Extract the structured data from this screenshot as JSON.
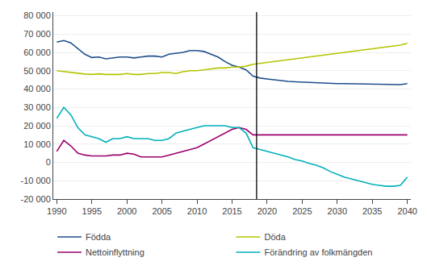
{
  "chart_data": {
    "type": "line",
    "title": "",
    "xlabel": "",
    "ylabel": "",
    "x": [
      1990,
      1991,
      1992,
      1993,
      1994,
      1995,
      1996,
      1997,
      1998,
      1999,
      2000,
      2001,
      2002,
      2003,
      2004,
      2005,
      2006,
      2007,
      2008,
      2009,
      2010,
      2011,
      2012,
      2013,
      2014,
      2015,
      2016,
      2017,
      2018,
      2019,
      2020,
      2021,
      2022,
      2023,
      2024,
      2025,
      2026,
      2027,
      2028,
      2029,
      2030,
      2031,
      2032,
      2033,
      2034,
      2035,
      2036,
      2037,
      2038,
      2039,
      2040
    ],
    "series": [
      {
        "name": "Födda",
        "color": "#1f4e8c",
        "values": [
          65600,
          66500,
          65200,
          62000,
          59000,
          57200,
          57500,
          56500,
          57000,
          57500,
          57500,
          57000,
          57500,
          58000,
          58000,
          57500,
          59000,
          59500,
          60000,
          61000,
          61000,
          60500,
          59000,
          57500,
          55000,
          53000,
          52000,
          50500,
          47000,
          46000,
          45500,
          45000,
          44500,
          44200,
          44000,
          43800,
          43600,
          43400,
          43200,
          43100,
          43000,
          43000,
          42900,
          42800,
          42700,
          42600,
          42600,
          42500,
          42400,
          42400,
          43000
        ]
      },
      {
        "name": "Döda",
        "color": "#b5c400",
        "values": [
          50000,
          49500,
          49000,
          48500,
          48200,
          48000,
          48300,
          48000,
          48000,
          48000,
          48500,
          48000,
          48000,
          48500,
          48500,
          49000,
          49000,
          48500,
          49500,
          50000,
          50000,
          50500,
          51000,
          51500,
          51500,
          52000,
          52000,
          52500,
          53500,
          54000,
          54500,
          55000,
          55500,
          56000,
          56500,
          57000,
          57500,
          58000,
          58500,
          59000,
          59500,
          60000,
          60500,
          61000,
          61500,
          62000,
          62500,
          63000,
          63500,
          64000,
          65000
        ]
      },
      {
        "name": "Nettoinflyttning",
        "color": "#9b006e",
        "values": [
          6000,
          12000,
          9000,
          5000,
          4000,
          3500,
          3500,
          3500,
          4000,
          4000,
          5000,
          4500,
          3000,
          3000,
          3000,
          3000,
          4000,
          5000,
          6000,
          7000,
          8000,
          10000,
          12000,
          14000,
          16000,
          18000,
          19000,
          18000,
          15000,
          15000,
          15000,
          15000,
          15000,
          15000,
          15000,
          15000,
          15000,
          15000,
          15000,
          15000,
          15000,
          15000,
          15000,
          15000,
          15000,
          15000,
          15000,
          15000,
          15000,
          15000,
          15000
        ]
      },
      {
        "name": "Förändring av folkmängden",
        "color": "#00b0b9",
        "values": [
          24000,
          30000,
          26000,
          19000,
          15000,
          14000,
          13000,
          11000,
          13000,
          13000,
          14000,
          13000,
          13000,
          13000,
          12000,
          12000,
          13000,
          16000,
          17000,
          18000,
          19000,
          20000,
          20000,
          20000,
          20000,
          19000,
          19000,
          16000,
          8000,
          7000,
          6000,
          5000,
          4000,
          3000,
          1500,
          800,
          -500,
          -1500,
          -3000,
          -5000,
          -6500,
          -8000,
          -9000,
          -10000,
          -11000,
          -12000,
          -12500,
          -13000,
          -13000,
          -12500,
          -8000
        ]
      }
    ],
    "xlim": [
      1989.5,
      2040.5
    ],
    "xticks": [
      1990,
      1995,
      2000,
      2005,
      2010,
      2015,
      2020,
      2025,
      2030,
      2035,
      2040
    ],
    "ylim": [
      -20000,
      82000
    ],
    "yticks": [
      {
        "value": -20000,
        "label": "-20 000"
      },
      {
        "value": -10000,
        "label": "-10 000"
      },
      0,
      {
        "value": 10000,
        "label": "10 000"
      },
      {
        "value": 20000,
        "label": "20 000"
      },
      {
        "value": 30000,
        "label": "30 000"
      },
      {
        "value": 40000,
        "label": "40 000"
      },
      {
        "value": 50000,
        "label": "50 000"
      },
      {
        "value": 60000,
        "label": "60 000"
      },
      {
        "value": 70000,
        "label": "70 000"
      },
      {
        "value": 80000,
        "label": "80 000"
      }
    ],
    "vline": {
      "x": 2018.5,
      "color": "#000000"
    },
    "grid": "y",
    "legend": "bottom"
  }
}
